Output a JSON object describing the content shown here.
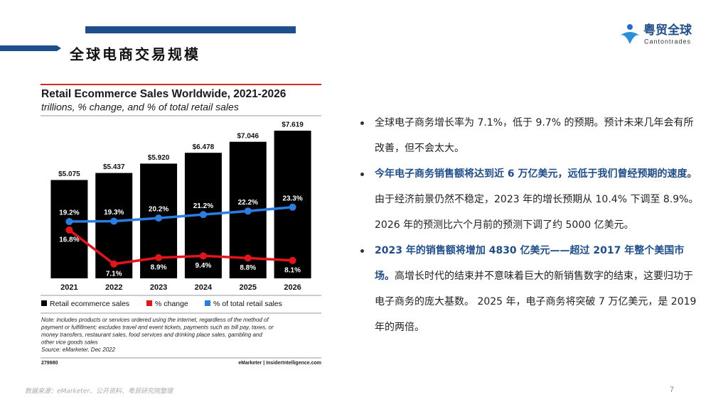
{
  "slide": {
    "title": "全球电商交易规模",
    "logo_name": "粤贸全球",
    "logo_sub": "Cantontrades",
    "source": "数据来源：eMarketer、公开资料、粤贸研究院整理",
    "page_number": "7"
  },
  "bullets": [
    {
      "text": "全球电子商务增长率为 7.1%，低于 9.7% 的预期。预计未来几年会有所改善，但不会太大。"
    },
    {
      "bold": "今年电子商务销售额将达到近 6 万亿美元，远低于我们曾经预期的速度。",
      "text": "由于经济前景仍然不稳定，2023 年的增长预期从 10.4% 下调至 8.9%。2026 年的预测比六个月前的预测下调了约 5000 亿美元。"
    },
    {
      "bold": "2023 年的销售额将增加 4830 亿美元——超过 2017 年整个美国市场。",
      "text": "高增长时代的结束并不意味着巨大的新销售数字的结束，这要归功于电子商务的庞大基数。 2025 年，电子商务将突破 7 万亿美元，是 2019 年的两倍。"
    }
  ],
  "chart_data": {
    "type": "bar",
    "title": "Retail Ecommerce Sales Worldwide, 2021-2026",
    "subtitle": "trillions, % change, and % of total retail sales",
    "categories": [
      "2021",
      "2022",
      "2023",
      "2024",
      "2025",
      "2026"
    ],
    "ylim": [
      0,
      8.5
    ],
    "y2lim": [
      3,
      50
    ],
    "series": [
      {
        "name": "Retail ecommerce sales",
        "type": "bar",
        "color": "#000000",
        "values": [
          5.075,
          5.437,
          5.92,
          6.478,
          7.046,
          7.619
        ],
        "value_labels": [
          "$5.075",
          "$5.437",
          "$5.920",
          "$6.478",
          "$7.046",
          "$7.619"
        ]
      },
      {
        "name": "% change",
        "type": "line",
        "axis": "y2",
        "color": "#e3151a",
        "values": [
          16.8,
          7.1,
          8.9,
          9.4,
          8.8,
          8.1
        ],
        "value_labels": [
          "16.8%",
          "7.1%",
          "8.9%",
          "9.4%",
          "8.8%",
          "8.1%"
        ]
      },
      {
        "name": "% of total retail sales",
        "type": "line",
        "axis": "y2",
        "color": "#2a7de1",
        "values": [
          19.2,
          19.3,
          20.2,
          21.2,
          22.2,
          23.3
        ],
        "value_labels": [
          "19.2%",
          "19.3%",
          "20.2%",
          "21.2%",
          "22.2%",
          "23.3%"
        ]
      }
    ],
    "note_lines": [
      "Note: includes products or services ordered using the internet, regardless of the method of",
      "payment or fulfillment; excludes travel and event tickets, payments such as bill pay, taxes, or",
      "money transfers, restaurant sales, food services and drinking place sales, gambling and",
      "other vice goods sales",
      "Source: eMarketer, Dec 2022"
    ],
    "chart_id": "279980",
    "credit": "eMarketer | InsiderIntelligence.com"
  }
}
